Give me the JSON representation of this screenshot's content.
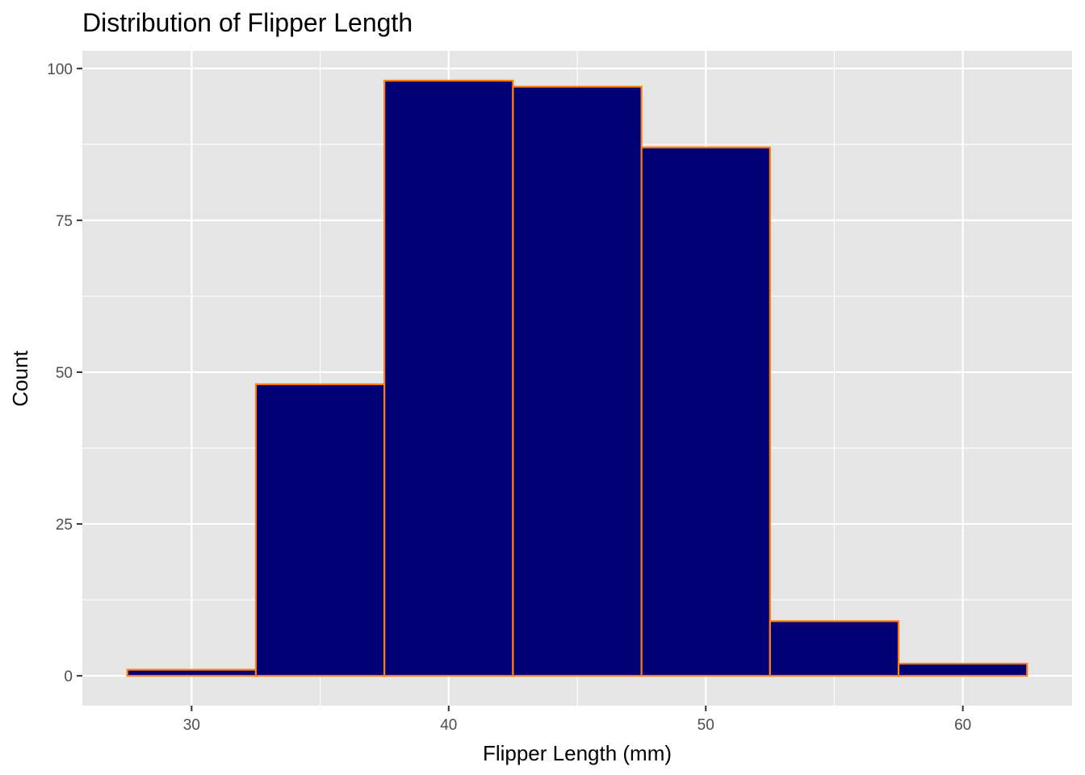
{
  "chart_data": {
    "type": "histogram",
    "title": "Distribution of Flipper Length",
    "xlabel": "Flipper Length (mm)",
    "ylabel": "Count",
    "bins": [
      {
        "start": 27.5,
        "end": 32.5,
        "count": 1
      },
      {
        "start": 32.5,
        "end": 37.5,
        "count": 48
      },
      {
        "start": 37.5,
        "end": 42.5,
        "count": 98
      },
      {
        "start": 42.5,
        "end": 47.5,
        "count": 97
      },
      {
        "start": 47.5,
        "end": 52.5,
        "count": 87
      },
      {
        "start": 52.5,
        "end": 57.5,
        "count": 9
      },
      {
        "start": 57.5,
        "end": 62.5,
        "count": 2
      }
    ],
    "xlim": [
      25.75,
      64.25
    ],
    "ylim": [
      -4.9,
      102.9
    ],
    "xticks": [
      30,
      40,
      50,
      60
    ],
    "xticks_minor": [
      35,
      45,
      55
    ],
    "yticks": [
      0,
      25,
      50,
      75,
      100
    ],
    "yticks_minor": [
      12.5,
      37.5,
      62.5,
      87.5
    ],
    "grid": true,
    "colors": {
      "bar_fill": "#000077",
      "bar_outline": "#FF7F0E",
      "panel_background": "#E5E5E5",
      "grid": "#FFFFFF"
    }
  }
}
